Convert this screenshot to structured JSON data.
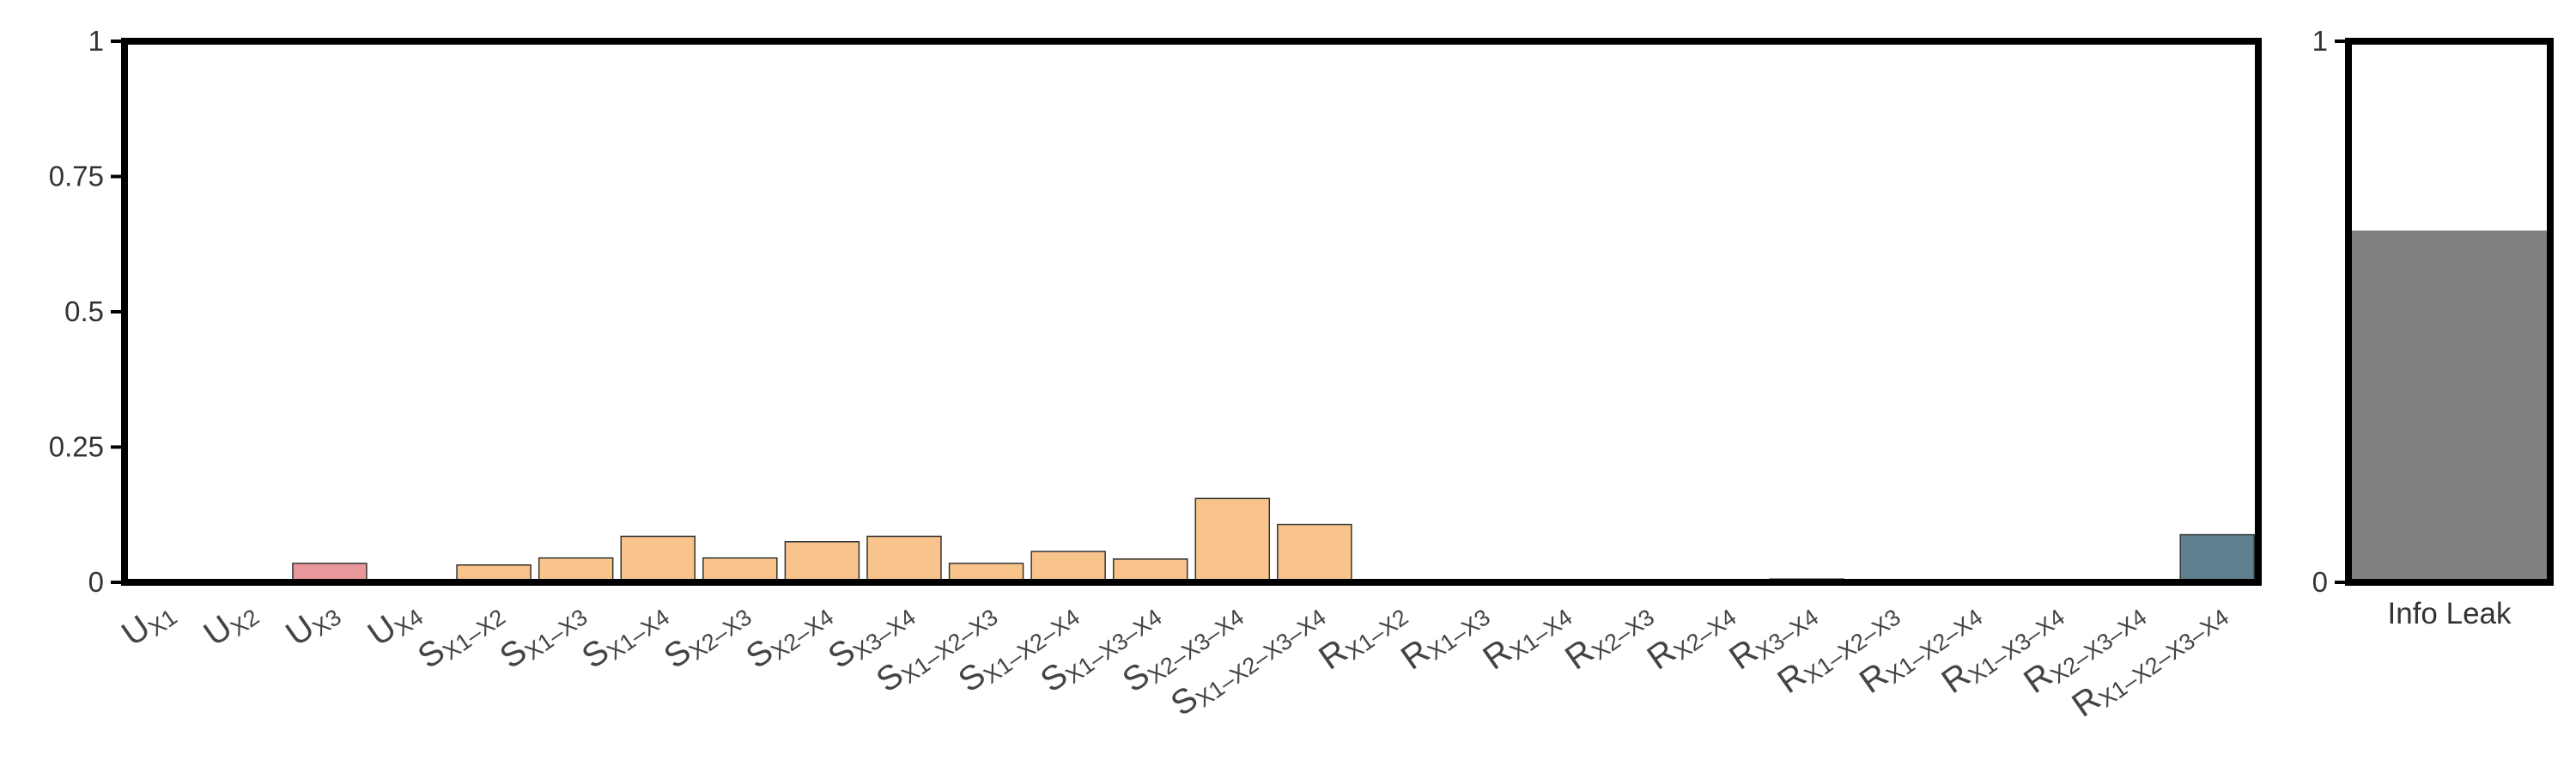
{
  "chart_data": [
    {
      "type": "bar",
      "ylim": [
        0,
        1
      ],
      "yticks": [
        "0",
        "0.25",
        "0.5",
        "0.75",
        "1"
      ],
      "grid": false,
      "legend": "none",
      "categories": [
        {
          "main": "U",
          "sub": "X1"
        },
        {
          "main": "U",
          "sub": "X2"
        },
        {
          "main": "U",
          "sub": "X3"
        },
        {
          "main": "U",
          "sub": "X4"
        },
        {
          "main": "S",
          "sub": "X1–X2"
        },
        {
          "main": "S",
          "sub": "X1–X3"
        },
        {
          "main": "S",
          "sub": "X1–X4"
        },
        {
          "main": "S",
          "sub": "X2–X3"
        },
        {
          "main": "S",
          "sub": "X2–X4"
        },
        {
          "main": "S",
          "sub": "X3–X4"
        },
        {
          "main": "S",
          "sub": "X1–X2–X3"
        },
        {
          "main": "S",
          "sub": "X1–X2–X4"
        },
        {
          "main": "S",
          "sub": "X1–X3–X4"
        },
        {
          "main": "S",
          "sub": "X2–X3–X4"
        },
        {
          "main": "S",
          "sub": "X1–X2–X3–X4"
        },
        {
          "main": "R",
          "sub": "X1–X2"
        },
        {
          "main": "R",
          "sub": "X1–X3"
        },
        {
          "main": "R",
          "sub": "X1–X4"
        },
        {
          "main": "R",
          "sub": "X2–X3"
        },
        {
          "main": "R",
          "sub": "X2–X4"
        },
        {
          "main": "R",
          "sub": "X3–X4"
        },
        {
          "main": "R",
          "sub": "X1–X2–X3"
        },
        {
          "main": "R",
          "sub": "X1–X2–X4"
        },
        {
          "main": "R",
          "sub": "X1–X3–X4"
        },
        {
          "main": "R",
          "sub": "X2–X3–X4"
        },
        {
          "main": "R",
          "sub": "X1–X2–X3–X4"
        }
      ],
      "values": [
        0.0,
        0.0,
        0.035,
        0.0,
        0.032,
        0.045,
        0.085,
        0.045,
        0.075,
        0.085,
        0.035,
        0.057,
        0.043,
        0.155,
        0.107,
        0.0,
        0.0,
        0.0,
        0.0,
        0.0,
        0.006,
        0.0,
        0.0,
        0.0,
        0.0,
        0.088
      ],
      "colors": [
        "#f4a2a2",
        "#f4a2a2",
        "#e8979a",
        "#f4a2a2",
        "#f8c48c",
        "#f8c48c",
        "#f8c48c",
        "#f8c48c",
        "#f8c48c",
        "#f8c48c",
        "#f8c48c",
        "#f8c48c",
        "#f8c48c",
        "#f8c48c",
        "#f8c48c",
        "#5f7f8f",
        "#5f7f8f",
        "#5f7f8f",
        "#5f7f8f",
        "#5f7f8f",
        "#5f7f8f",
        "#5f7f8f",
        "#5f7f8f",
        "#5f7f8f",
        "#5f7f8f",
        "#5f7f8f"
      ]
    },
    {
      "type": "bar",
      "ylim": [
        0,
        1
      ],
      "yticks": [
        "0",
        "1"
      ],
      "categories": [
        "Info Leak"
      ],
      "values": [
        0.65
      ],
      "colors": [
        "#808080"
      ]
    }
  ]
}
